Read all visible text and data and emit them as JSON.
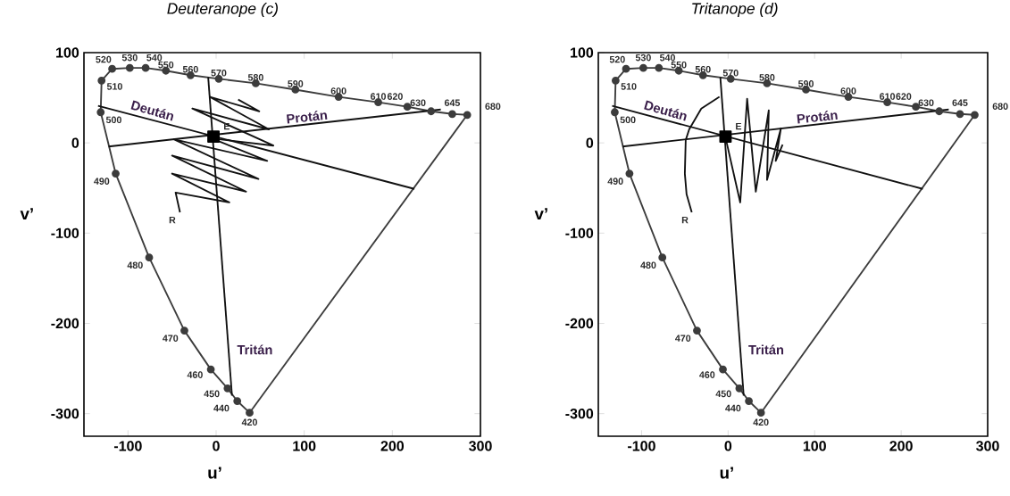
{
  "chart_data": [
    {
      "type": "line",
      "title": "Deuteranope (c)",
      "xlabel": "u’",
      "ylabel": "v’",
      "xlim": [
        -150,
        300
      ],
      "ylim": [
        -325,
        100
      ],
      "xticks": [
        -100,
        0,
        100,
        200,
        300
      ],
      "yticks": [
        -300,
        -200,
        -100,
        0,
        100
      ],
      "series": [
        {
          "type": "line",
          "color": "#3c3c3c",
          "marker": "circle",
          "x": [
            285,
            268,
            244,
            217,
            184,
            139,
            90,
            45,
            3,
            -29,
            -57,
            -80,
            -98,
            -118,
            -130,
            -131,
            -114,
            -76,
            -36,
            -6,
            13,
            24,
            38
          ],
          "values": [
            31,
            32,
            35,
            40,
            45,
            51,
            59,
            66,
            71,
            75,
            80,
            83,
            83,
            82,
            69,
            34,
            -34,
            -127,
            -208,
            -251,
            -272,
            -286,
            -299
          ]
        },
        {
          "type": "line",
          "color": "#3c3c3c",
          "marker": "none",
          "x": [
            38,
            285
          ],
          "values": [
            -299,
            31
          ]
        },
        {
          "type": "line",
          "color": "#111111",
          "marker": "none",
          "x": [
            -9,
            18
          ],
          "values": [
            73,
            -280
          ]
        },
        {
          "type": "line",
          "color": "#111111",
          "marker": "none",
          "x": [
            -134,
            225
          ],
          "values": [
            41,
            -51
          ]
        },
        {
          "type": "line",
          "color": "#111111",
          "marker": "none",
          "x": [
            -122,
            255
          ],
          "values": [
            -4,
            37
          ]
        },
        {
          "type": "line",
          "color": "#111111",
          "marker": "none",
          "x": [
            -41,
            -46,
            15,
            -50,
            34,
            -50,
            48,
            -48,
            58,
            -5,
            65,
            -27,
            60,
            -7,
            49,
            25
          ],
          "values": [
            -77,
            -55,
            -66,
            -34,
            -54,
            -14,
            -40,
            4,
            -20,
            5,
            -3,
            38,
            15,
            51,
            35,
            48
          ]
        },
        {
          "type": "scatter",
          "color": "#000000",
          "marker": "square",
          "x": [
            -3
          ],
          "values": [
            7
          ]
        }
      ],
      "annotations": [
        {
          "text": "680",
          "x": 285,
          "y": 31
        },
        {
          "text": "645",
          "x": 268,
          "y": 32
        },
        {
          "text": "630",
          "x": 244,
          "y": 35
        },
        {
          "text": "620",
          "x": 217,
          "y": 40
        },
        {
          "text": "610",
          "x": 184,
          "y": 45
        },
        {
          "text": "600",
          "x": 139,
          "y": 51
        },
        {
          "text": "590",
          "x": 90,
          "y": 59
        },
        {
          "text": "580",
          "x": 45,
          "y": 66
        },
        {
          "text": "570",
          "x": 3,
          "y": 71
        },
        {
          "text": "560",
          "x": -29,
          "y": 75
        },
        {
          "text": "550",
          "x": -57,
          "y": 80
        },
        {
          "text": "540",
          "x": -80,
          "y": 83
        },
        {
          "text": "530",
          "x": -98,
          "y": 83
        },
        {
          "text": "520",
          "x": -118,
          "y": 82
        },
        {
          "text": "510",
          "x": -130,
          "y": 69
        },
        {
          "text": "500",
          "x": -131,
          "y": 34
        },
        {
          "text": "490",
          "x": -114,
          "y": -34
        },
        {
          "text": "480",
          "x": -76,
          "y": -127
        },
        {
          "text": "470",
          "x": -36,
          "y": -208
        },
        {
          "text": "460",
          "x": -6,
          "y": -251
        },
        {
          "text": "450",
          "x": 13,
          "y": -272
        },
        {
          "text": "440",
          "x": 24,
          "y": -286
        },
        {
          "text": "420",
          "x": 38,
          "y": -299
        },
        "Deután",
        "Protán",
        "Tritán",
        {
          "text": "E",
          "x": 12,
          "y": 12
        },
        {
          "text": "R",
          "x": -43,
          "y": -79
        }
      ]
    },
    {
      "type": "line",
      "title": "Tritanope (d)",
      "xlabel": "u’",
      "ylabel": "v’",
      "xlim": [
        -150,
        300
      ],
      "ylim": [
        -325,
        100
      ],
      "xticks": [
        -100,
        0,
        100,
        200,
        300
      ],
      "yticks": [
        -300,
        -200,
        -100,
        0,
        100
      ],
      "series": [
        {
          "type": "line",
          "color": "#3c3c3c",
          "marker": "circle",
          "x": [
            285,
            268,
            244,
            217,
            184,
            139,
            90,
            45,
            3,
            -29,
            -57,
            -80,
            -98,
            -118,
            -130,
            -131,
            -114,
            -76,
            -36,
            -6,
            13,
            24,
            38
          ],
          "values": [
            31,
            32,
            35,
            40,
            45,
            51,
            59,
            66,
            71,
            75,
            80,
            83,
            83,
            82,
            69,
            34,
            -34,
            -127,
            -208,
            -251,
            -272,
            -286,
            -299
          ]
        },
        {
          "type": "line",
          "color": "#3c3c3c",
          "marker": "none",
          "x": [
            38,
            285
          ],
          "values": [
            -299,
            31
          ]
        },
        {
          "type": "line",
          "color": "#111111",
          "marker": "none",
          "x": [
            -9,
            18
          ],
          "values": [
            73,
            -280
          ]
        },
        {
          "type": "line",
          "color": "#111111",
          "marker": "none",
          "x": [
            -134,
            225
          ],
          "values": [
            41,
            -51
          ]
        },
        {
          "type": "line",
          "color": "#111111",
          "marker": "none",
          "x": [
            -122,
            255
          ],
          "values": [
            -4,
            37
          ]
        },
        {
          "type": "line",
          "color": "#111111",
          "marker": "none",
          "x": [
            -42,
            -48,
            -50,
            -49,
            -45,
            -31,
            -10
          ],
          "values": [
            -77,
            -57,
            -34,
            3,
            15,
            38,
            51
          ]
        },
        {
          "type": "line",
          "color": "#111111",
          "marker": "none",
          "x": [
            -3,
            14,
            22,
            32,
            47,
            45,
            61,
            55,
            63
          ],
          "values": [
            6,
            -66,
            49,
            -54,
            36,
            -41,
            16,
            -20,
            -2
          ]
        },
        {
          "type": "scatter",
          "color": "#000000",
          "marker": "square",
          "x": [
            -3
          ],
          "values": [
            7
          ]
        }
      ],
      "annotations": [
        {
          "text": "680",
          "x": 285,
          "y": 31
        },
        {
          "text": "645",
          "x": 268,
          "y": 32
        },
        {
          "text": "630",
          "x": 244,
          "y": 35
        },
        {
          "text": "620",
          "x": 217,
          "y": 40
        },
        {
          "text": "610",
          "x": 184,
          "y": 45
        },
        {
          "text": "600",
          "x": 139,
          "y": 51
        },
        {
          "text": "590",
          "x": 90,
          "y": 59
        },
        {
          "text": "580",
          "x": 45,
          "y": 66
        },
        {
          "text": "570",
          "x": 3,
          "y": 71
        },
        {
          "text": "560",
          "x": -29,
          "y": 75
        },
        {
          "text": "550",
          "x": -57,
          "y": 80
        },
        {
          "text": "540",
          "x": -80,
          "y": 83
        },
        {
          "text": "530",
          "x": -98,
          "y": 83
        },
        {
          "text": "520",
          "x": -118,
          "y": 82
        },
        {
          "text": "510",
          "x": -130,
          "y": 69
        },
        {
          "text": "500",
          "x": -131,
          "y": 34
        },
        {
          "text": "490",
          "x": -114,
          "y": -34
        },
        {
          "text": "480",
          "x": -76,
          "y": -127
        },
        {
          "text": "470",
          "x": -36,
          "y": -208
        },
        {
          "text": "460",
          "x": -6,
          "y": -251
        },
        {
          "text": "450",
          "x": 13,
          "y": -272
        },
        {
          "text": "440",
          "x": 24,
          "y": -286
        },
        {
          "text": "420",
          "x": 38,
          "y": -299
        },
        "Deután",
        "Protán",
        "Tritán",
        {
          "text": "E",
          "x": 12,
          "y": 12
        },
        {
          "text": "R",
          "x": -43,
          "y": -79
        }
      ]
    }
  ]
}
